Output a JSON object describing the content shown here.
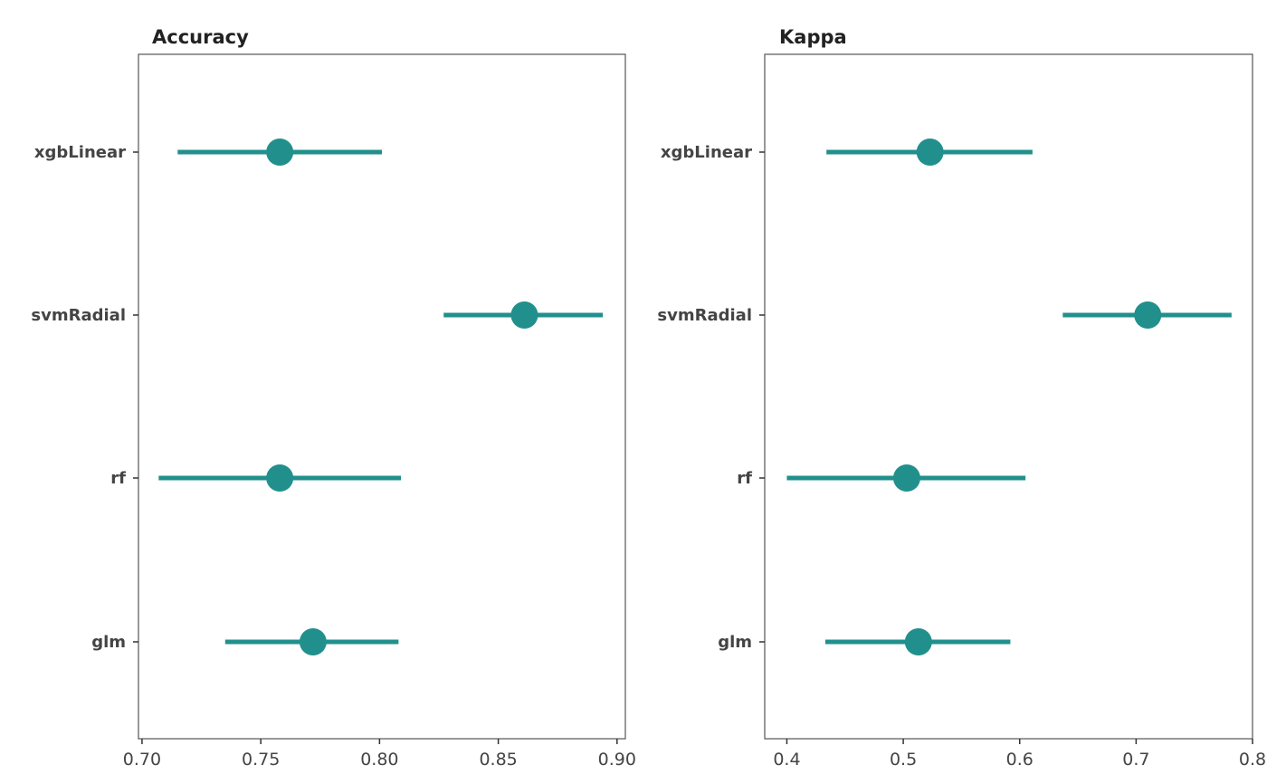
{
  "chart_data": [
    {
      "type": "dot-errorbar",
      "title": "Accuracy",
      "xlabel": "",
      "ylabel": "",
      "xlim": [
        0.6985,
        0.9035
      ],
      "xticks": [
        0.7,
        0.75,
        0.8,
        0.85,
        0.9
      ],
      "xtick_labels": [
        "0.70",
        "0.75",
        "0.80",
        "0.85",
        "0.90"
      ],
      "categories": [
        "xgbLinear",
        "svmRadial",
        "rf",
        "glm"
      ],
      "estimates": [
        0.758,
        0.861,
        0.758,
        0.772
      ],
      "lower": [
        0.715,
        0.827,
        0.707,
        0.735
      ],
      "upper": [
        0.801,
        0.894,
        0.809,
        0.808
      ],
      "color": "#21908C",
      "grid": false
    },
    {
      "type": "dot-errorbar",
      "title": "Kappa",
      "xlabel": "",
      "ylabel": "",
      "xlim": [
        0.381,
        0.8
      ],
      "xticks": [
        0.4,
        0.5,
        0.6,
        0.7,
        0.8
      ],
      "xtick_labels": [
        "0.4",
        "0.5",
        "0.6",
        "0.7",
        "0.8"
      ],
      "categories": [
        "xgbLinear",
        "svmRadial",
        "rf",
        "glm"
      ],
      "estimates": [
        0.523,
        0.71,
        0.503,
        0.513
      ],
      "lower": [
        0.434,
        0.637,
        0.4,
        0.433
      ],
      "upper": [
        0.611,
        0.782,
        0.605,
        0.592
      ],
      "color": "#21908C",
      "grid": false
    }
  ]
}
